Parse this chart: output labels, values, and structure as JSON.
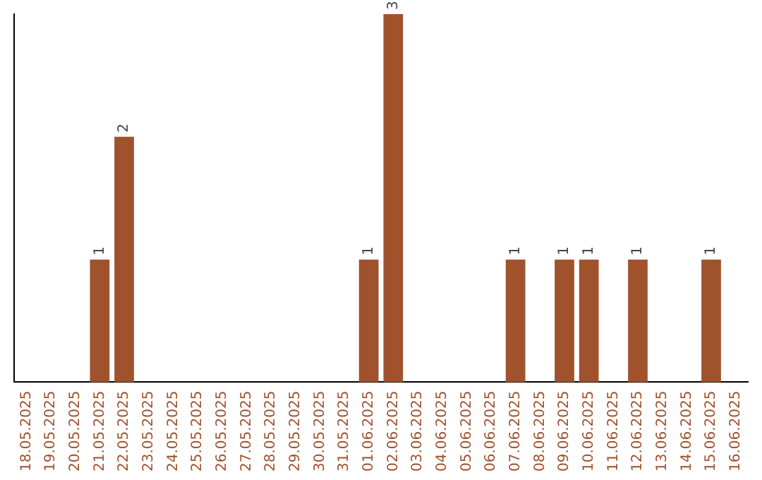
{
  "chart_data": {
    "type": "bar",
    "categories": [
      "18.05.2025",
      "19.05.2025",
      "20.05.2025",
      "21.05.2025",
      "22.05.2025",
      "23.05.2025",
      "24.05.2025",
      "25.05.2025",
      "26.05.2025",
      "27.05.2025",
      "28.05.2025",
      "29.05.2025",
      "30.05.2025",
      "31.05.2025",
      "01.06.2025",
      "02.06.2025",
      "03.06.2025",
      "04.06.2025",
      "05.06.2025",
      "06.06.2025",
      "07.06.2025",
      "08.06.2025",
      "09.06.2025",
      "10.06.2025",
      "11.06.2025",
      "12.06.2025",
      "13.06.2025",
      "14.06.2025",
      "15.06.2025",
      "16.06.2025"
    ],
    "values": [
      0,
      0,
      0,
      1,
      2,
      0,
      0,
      0,
      0,
      0,
      0,
      0,
      0,
      0,
      1,
      3,
      0,
      0,
      0,
      0,
      1,
      0,
      1,
      1,
      0,
      1,
      0,
      0,
      1,
      0
    ],
    "value_labels": [
      null,
      null,
      null,
      "1",
      "2",
      null,
      null,
      null,
      null,
      null,
      null,
      null,
      null,
      null,
      "1",
      "3",
      null,
      null,
      null,
      null,
      "1",
      null,
      "1",
      "1",
      null,
      "1",
      null,
      null,
      "1",
      null
    ],
    "color": "#a0522d",
    "ylim": [
      0,
      3
    ],
    "tick_labels": "x",
    "grid": false,
    "legend": false
  }
}
